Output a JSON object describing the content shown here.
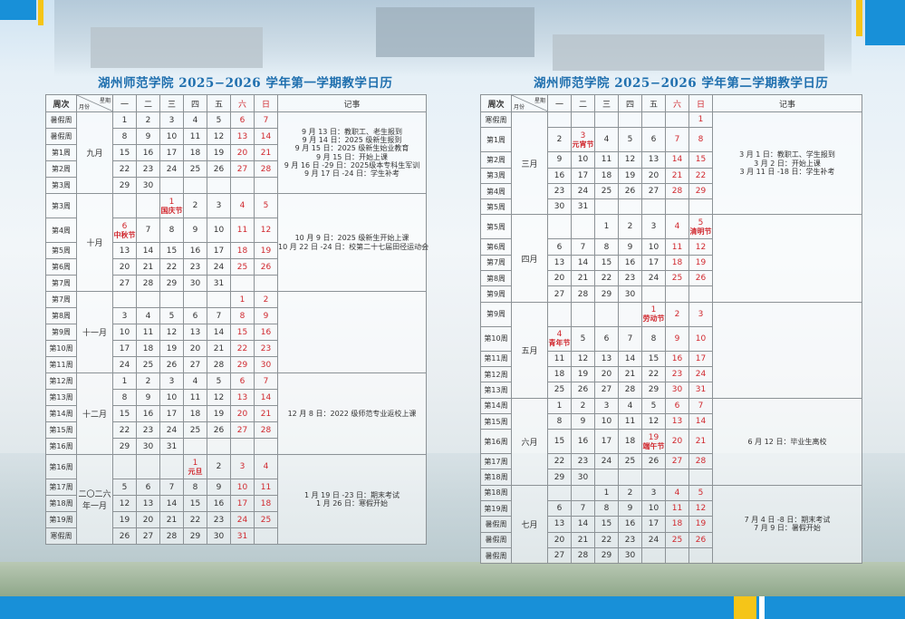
{
  "headers": {
    "week": "周次",
    "weekday": "星期",
    "month": "月份",
    "days": [
      "一",
      "二",
      "三",
      "四",
      "五",
      "六",
      "日"
    ],
    "notes": "记事"
  },
  "colors": {
    "title": "#1f6fae",
    "weekend": "#d0282e",
    "accent_bar": "#1890d8",
    "accent_yellow": "#f5c518"
  },
  "semesters": [
    {
      "title": "湖州师范学院 2025−2026 学年第一学期教学日历",
      "months": [
        {
          "label": "九月",
          "notes": [
            "9 月 13 日：教职工、老生报到",
            "9 月 14 日：2025 级新生报到",
            "9 月 15 日：2025 级新生始业教育",
            "9 月 15 日：开始上课",
            "9 月 16 日 -29 日：2025级本专科生军训",
            "9 月 17 日 -24 日：学生补考"
          ],
          "rows": [
            {
              "week": "暑假周",
              "days": [
                "1",
                "2",
                "3",
                "4",
                "5",
                "6",
                "7"
              ]
            },
            {
              "week": "暑假周",
              "days": [
                "8",
                "9",
                "10",
                "11",
                "12",
                "13",
                "14"
              ]
            },
            {
              "week": "第1周",
              "days": [
                "15",
                "16",
                "17",
                "18",
                "19",
                "20",
                "21"
              ]
            },
            {
              "week": "第2周",
              "days": [
                "22",
                "23",
                "24",
                "25",
                "26",
                "27",
                "28"
              ]
            },
            {
              "week": "第3周",
              "days": [
                "29",
                "30",
                "",
                "",
                "",
                "",
                ""
              ]
            }
          ]
        },
        {
          "label": "十月",
          "notes": [
            "10 月 9 日：2025 级新生开始上课",
            "10 月 22 日 -24 日：校第二十七届田径运动会"
          ],
          "rows": [
            {
              "week": "第3周",
              "days": [
                "",
                "",
                "1",
                "2",
                "3",
                "4",
                "5"
              ],
              "holidays": {
                "2": "国庆节"
              }
            },
            {
              "week": "第4周",
              "days": [
                "6",
                "7",
                "8",
                "9",
                "10",
                "11",
                "12"
              ],
              "holidays": {
                "0": "中秋节"
              }
            },
            {
              "week": "第5周",
              "days": [
                "13",
                "14",
                "15",
                "16",
                "17",
                "18",
                "19"
              ]
            },
            {
              "week": "第6周",
              "days": [
                "20",
                "21",
                "22",
                "23",
                "24",
                "25",
                "26"
              ]
            },
            {
              "week": "第7周",
              "days": [
                "27",
                "28",
                "29",
                "30",
                "31",
                "",
                ""
              ]
            }
          ]
        },
        {
          "label": "十一月",
          "notes": [],
          "rows": [
            {
              "week": "第7周",
              "days": [
                "",
                "",
                "",
                "",
                "",
                "1",
                "2"
              ]
            },
            {
              "week": "第8周",
              "days": [
                "3",
                "4",
                "5",
                "6",
                "7",
                "8",
                "9"
              ]
            },
            {
              "week": "第9周",
              "days": [
                "10",
                "11",
                "12",
                "13",
                "14",
                "15",
                "16"
              ]
            },
            {
              "week": "第10周",
              "days": [
                "17",
                "18",
                "19",
                "20",
                "21",
                "22",
                "23"
              ]
            },
            {
              "week": "第11周",
              "days": [
                "24",
                "25",
                "26",
                "27",
                "28",
                "29",
                "30"
              ]
            }
          ]
        },
        {
          "label": "十二月",
          "notes": [
            "12 月 8 日：2022 级师范专业返校上课"
          ],
          "rows": [
            {
              "week": "第12周",
              "days": [
                "1",
                "2",
                "3",
                "4",
                "5",
                "6",
                "7"
              ]
            },
            {
              "week": "第13周",
              "days": [
                "8",
                "9",
                "10",
                "11",
                "12",
                "13",
                "14"
              ]
            },
            {
              "week": "第14周",
              "days": [
                "15",
                "16",
                "17",
                "18",
                "19",
                "20",
                "21"
              ]
            },
            {
              "week": "第15周",
              "days": [
                "22",
                "23",
                "24",
                "25",
                "26",
                "27",
                "28"
              ]
            },
            {
              "week": "第16周",
              "days": [
                "29",
                "30",
                "31",
                "",
                "",
                "",
                ""
              ]
            }
          ]
        },
        {
          "label": "二〇二六年一月",
          "notes": [
            "1 月 19 日 -23 日：期末考试",
            "1 月 26 日：寒假开始"
          ],
          "rows": [
            {
              "week": "第16周",
              "days": [
                "",
                "",
                "",
                "1",
                "2",
                "3",
                "4"
              ],
              "holidays": {
                "3": "元旦"
              }
            },
            {
              "week": "第17周",
              "days": [
                "5",
                "6",
                "7",
                "8",
                "9",
                "10",
                "11"
              ]
            },
            {
              "week": "第18周",
              "days": [
                "12",
                "13",
                "14",
                "15",
                "16",
                "17",
                "18"
              ]
            },
            {
              "week": "第19周",
              "days": [
                "19",
                "20",
                "21",
                "22",
                "23",
                "24",
                "25"
              ]
            },
            {
              "week": "寒假周",
              "days": [
                "26",
                "27",
                "28",
                "29",
                "30",
                "31",
                ""
              ]
            }
          ]
        }
      ]
    },
    {
      "title": "湖州师范学院 2025−2026 学年第二学期教学日历",
      "months": [
        {
          "label": "三月",
          "notes": [
            "3 月 1 日：教职工、学生报到",
            "3 月 2 日：开始上课",
            "3 月 11 日 -18 日：学生补考"
          ],
          "rows": [
            {
              "week": "寒假周",
              "days": [
                "",
                "",
                "",
                "",
                "",
                "",
                "1"
              ]
            },
            {
              "week": "第1周",
              "days": [
                "2",
                "3",
                "4",
                "5",
                "6",
                "7",
                "8"
              ],
              "holidays": {
                "1": "元宵节"
              }
            },
            {
              "week": "第2周",
              "days": [
                "9",
                "10",
                "11",
                "12",
                "13",
                "14",
                "15"
              ]
            },
            {
              "week": "第3周",
              "days": [
                "16",
                "17",
                "18",
                "19",
                "20",
                "21",
                "22"
              ]
            },
            {
              "week": "第4周",
              "days": [
                "23",
                "24",
                "25",
                "26",
                "27",
                "28",
                "29"
              ]
            },
            {
              "week": "第5周",
              "days": [
                "30",
                "31",
                "",
                "",
                "",
                "",
                ""
              ]
            }
          ]
        },
        {
          "label": "四月",
          "notes": [],
          "rows": [
            {
              "week": "第5周",
              "days": [
                "",
                "",
                "1",
                "2",
                "3",
                "4",
                "5"
              ],
              "holidays": {
                "6": "清明节"
              }
            },
            {
              "week": "第6周",
              "days": [
                "6",
                "7",
                "8",
                "9",
                "10",
                "11",
                "12"
              ]
            },
            {
              "week": "第7周",
              "days": [
                "13",
                "14",
                "15",
                "16",
                "17",
                "18",
                "19"
              ]
            },
            {
              "week": "第8周",
              "days": [
                "20",
                "21",
                "22",
                "23",
                "24",
                "25",
                "26"
              ]
            },
            {
              "week": "第9周",
              "days": [
                "27",
                "28",
                "29",
                "30",
                "",
                "",
                ""
              ]
            }
          ]
        },
        {
          "label": "五月",
          "notes": [],
          "rows": [
            {
              "week": "第9周",
              "days": [
                "",
                "",
                "",
                "",
                "1",
                "2",
                "3"
              ],
              "holidays": {
                "4": "劳动节"
              }
            },
            {
              "week": "第10周",
              "days": [
                "4",
                "5",
                "6",
                "7",
                "8",
                "9",
                "10"
              ],
              "holidays": {
                "0": "青年节"
              }
            },
            {
              "week": "第11周",
              "days": [
                "11",
                "12",
                "13",
                "14",
                "15",
                "16",
                "17"
              ]
            },
            {
              "week": "第12周",
              "days": [
                "18",
                "19",
                "20",
                "21",
                "22",
                "23",
                "24"
              ]
            },
            {
              "week": "第13周",
              "days": [
                "25",
                "26",
                "27",
                "28",
                "29",
                "30",
                "31"
              ]
            }
          ]
        },
        {
          "label": "六月",
          "notes": [
            "6 月 12 日：毕业生离校"
          ],
          "rows": [
            {
              "week": "第14周",
              "days": [
                "1",
                "2",
                "3",
                "4",
                "5",
                "6",
                "7"
              ]
            },
            {
              "week": "第15周",
              "days": [
                "8",
                "9",
                "10",
                "11",
                "12",
                "13",
                "14"
              ]
            },
            {
              "week": "第16周",
              "days": [
                "15",
                "16",
                "17",
                "18",
                "19",
                "20",
                "21"
              ],
              "holidays": {
                "4": "端午节"
              }
            },
            {
              "week": "第17周",
              "days": [
                "22",
                "23",
                "24",
                "25",
                "26",
                "27",
                "28"
              ]
            },
            {
              "week": "第18周",
              "days": [
                "29",
                "30",
                "",
                "",
                "",
                "",
                ""
              ]
            }
          ]
        },
        {
          "label": "七月",
          "notes": [
            "7 月 4 日 -8 日：期末考试",
            "7 月 9 日：暑假开始"
          ],
          "rows": [
            {
              "week": "第18周",
              "days": [
                "",
                "",
                "1",
                "2",
                "3",
                "4",
                "5"
              ]
            },
            {
              "week": "第19周",
              "days": [
                "6",
                "7",
                "8",
                "9",
                "10",
                "11",
                "12"
              ]
            },
            {
              "week": "暑假周",
              "days": [
                "13",
                "14",
                "15",
                "16",
                "17",
                "18",
                "19"
              ]
            },
            {
              "week": "暑假周",
              "days": [
                "20",
                "21",
                "22",
                "23",
                "24",
                "25",
                "26"
              ]
            },
            {
              "week": "暑假周",
              "days": [
                "27",
                "28",
                "29",
                "30",
                "",
                "",
                ""
              ]
            }
          ]
        }
      ]
    }
  ]
}
